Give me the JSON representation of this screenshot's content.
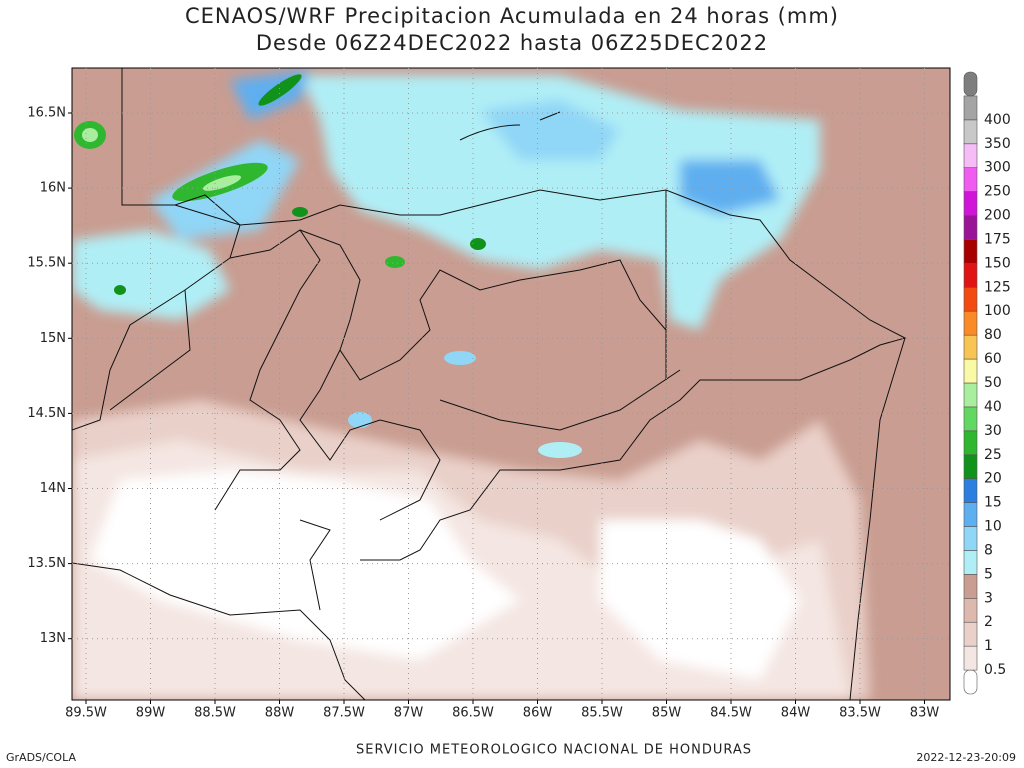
{
  "title": [
    "CENAOS/WRF Precipitacion Acumulada en 24 horas (mm)",
    "Desde 06Z24DEC2022 hasta 06Z25DEC2022"
  ],
  "lat_ticks": [
    "16.5N",
    "16N",
    "15.5N",
    "15N",
    "14.5N",
    "14N",
    "13.5N",
    "13N"
  ],
  "lon_ticks": [
    "89.5W",
    "89W",
    "88.5W",
    "88W",
    "87.5W",
    "87W",
    "86.5W",
    "86W",
    "85.5W",
    "85W",
    "84.5W",
    "84W",
    "83.5W",
    "83W"
  ],
  "colorbar": {
    "labels": [
      "0.5",
      "1",
      "2",
      "3",
      "5",
      "8",
      "10",
      "15",
      "20",
      "25",
      "30",
      "40",
      "50",
      "60",
      "80",
      "100",
      "125",
      "150",
      "175",
      "200",
      "250",
      "300",
      "350",
      "400"
    ],
    "colors": [
      "#ffffff",
      "#f4e6e2",
      "#e9d0c9",
      "#dcb8ad",
      "#c99d91",
      "#b0eef6",
      "#90d6f6",
      "#5eaff0",
      "#2c7fe0",
      "#11921a",
      "#2fb82f",
      "#62d862",
      "#a8ee9e",
      "#fafaa6",
      "#f8c454",
      "#f98a26",
      "#f24a10",
      "#e01414",
      "#a80000",
      "#9a1498",
      "#d014d8",
      "#f05cf0",
      "#f6bcf6",
      "#c8c8c8",
      "#a4a4a4",
      "#7e7e7e"
    ]
  },
  "footer": {
    "left": "GrADS/COLA",
    "center": "SERVICIO METEOROLOGICO NACIONAL DE HONDURAS",
    "right": "2022-12-23-20:09"
  }
}
